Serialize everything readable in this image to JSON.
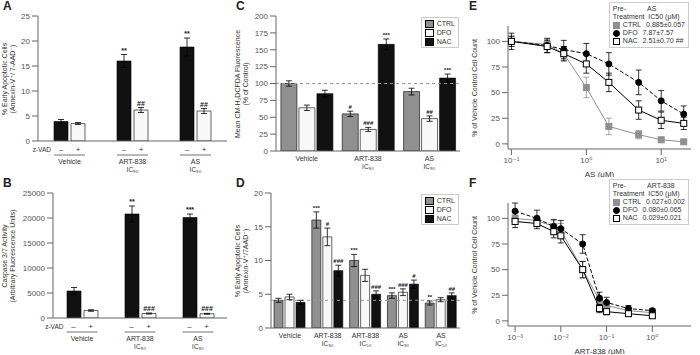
{
  "chart_data": [
    {
      "type": "bar",
      "title": "A",
      "ylabel": "% Early Apoptotic Cells\n(Annexin-V⁺/ 7-AAD⁻)",
      "xlabel": "z-VAD",
      "categories": [
        "Vehicle",
        "ART-838\nIC₉₀",
        "AS\nIC₉₀"
      ],
      "series": [
        {
          "name": "–",
          "color": "#111111",
          "values": [
            3.9,
            16.0,
            18.8
          ],
          "errors": [
            0.4,
            1.3,
            1.8
          ],
          "annotations": [
            null,
            "**",
            "**"
          ]
        },
        {
          "name": "+",
          "color": "#f8f8f8",
          "values": [
            3.5,
            6.2,
            6.0
          ],
          "errors": [
            0.2,
            0.5,
            0.5
          ],
          "annotations": [
            null,
            "##",
            "##"
          ]
        }
      ],
      "ylim": [
        0,
        25
      ],
      "yticks": [
        0,
        5,
        10,
        15,
        20,
        25
      ]
    },
    {
      "type": "bar",
      "title": "B",
      "ylabel": "Caspase 3/7 Activity\n(Arbitrary Fluorescence Units)",
      "xlabel": "z-VAD",
      "categories": [
        "Vehicle",
        "ART-838\nIC₉₀",
        "AS\nIC₉₀"
      ],
      "series": [
        {
          "name": "–",
          "color": "#111111",
          "values": [
            5400,
            20800,
            20100
          ],
          "errors": [
            700,
            1600,
            700
          ],
          "annotations": [
            null,
            "**",
            "***"
          ]
        },
        {
          "name": "+",
          "color": "#f8f8f8",
          "values": [
            1500,
            900,
            850
          ],
          "errors": [
            150,
            100,
            80
          ],
          "annotations": [
            null,
            "###",
            "###"
          ]
        }
      ],
      "ylim": [
        0,
        25000
      ],
      "yticks": [
        0,
        5000,
        10000,
        15000,
        20000,
        25000
      ]
    },
    {
      "type": "bar",
      "title": "C",
      "ylabel": "Mean CM-H₂DCFDA Fluorescence\n(% of Control)",
      "categories": [
        "Vehicle",
        "ART-838\nIC₉₀",
        "AS\nIC₉₀"
      ],
      "series": [
        {
          "name": "CTRL",
          "color": "#909090",
          "values": [
            100.0,
            55.0,
            88.0
          ],
          "errors": [
            4.0,
            4.0,
            5.0
          ],
          "annotations": [
            null,
            "#",
            null
          ]
        },
        {
          "name": "DFO",
          "color": "#f8f8f8",
          "values": [
            64.0,
            32.0,
            48.0
          ],
          "errors": [
            4.0,
            3.0,
            4.0
          ],
          "annotations": [
            null,
            "###",
            "##"
          ]
        },
        {
          "name": "NAC",
          "color": "#111111",
          "values": [
            85.0,
            158.0,
            108.0
          ],
          "errors": [
            5.0,
            8.0,
            6.0
          ],
          "annotations": [
            null,
            "***",
            "***"
          ]
        }
      ],
      "reference_line": 100,
      "legend": "upper right",
      "ylim": [
        0,
        200
      ],
      "yticks": [
        0,
        25,
        50,
        75,
        100,
        125,
        150,
        175,
        200
      ]
    },
    {
      "type": "bar",
      "title": "D",
      "ylabel": "% Early Apoptotic Cells\n(Annexin-V⁺/7AAD⁻)",
      "categories": [
        "Vehicle",
        "ART-838\nIC₉₀",
        "ART-838\nIC₅₀",
        "AS\nIC₉₀",
        "AS\nIC₅₀"
      ],
      "series": [
        {
          "name": "CTRL",
          "color": "#909090",
          "values": [
            4.1,
            16.0,
            10.0,
            4.8,
            3.7
          ],
          "errors": [
            0.3,
            1.2,
            0.9,
            0.4,
            0.3
          ],
          "annotations": [
            null,
            "***",
            "***",
            "***",
            "**"
          ]
        },
        {
          "name": "DFO",
          "color": "#f8f8f8",
          "values": [
            4.6,
            13.5,
            7.8,
            5.3,
            4.2
          ],
          "errors": [
            0.4,
            1.3,
            0.9,
            0.5,
            0.3
          ],
          "annotations": [
            null,
            "#",
            null,
            "###",
            null
          ]
        },
        {
          "name": "NAC",
          "color": "#111111",
          "values": [
            3.8,
            8.5,
            5.0,
            6.5,
            4.8
          ],
          "errors": [
            0.3,
            0.8,
            0.5,
            0.6,
            0.4
          ],
          "annotations": [
            null,
            "###",
            "###",
            "#",
            "##"
          ]
        }
      ],
      "reference_line": 4.1,
      "legend": "upper right",
      "ylim": [
        0,
        20
      ],
      "yticks": [
        0,
        5,
        10,
        15,
        20
      ]
    },
    {
      "type": "line",
      "title": "E",
      "xlabel": "AS (μM)",
      "ylabel": "% of Vehicle Control Cell Count",
      "legend": "upper right",
      "legend_title": "Pre-           AS\nTreatment  IC50 (μM)",
      "log": "x",
      "xlim": [
        0.09,
        25
      ],
      "xticks": [
        {
          "value": 0.1,
          "label": "10⁻¹"
        },
        {
          "value": 1,
          "label": "10⁰"
        },
        {
          "value": 10,
          "label": "10¹"
        }
      ],
      "ylim": [
        -5,
        115
      ],
      "yticks": [
        0,
        25,
        50,
        75,
        100
      ],
      "series": [
        {
          "name": "CTRL",
          "ic50": "0.885±0.057",
          "color": "#909090",
          "marker": "square",
          "line_style": "solid",
          "x": [
            0.1,
            0.3,
            0.5,
            1.0,
            2.0,
            5.0,
            10.0,
            20.0
          ],
          "values": [
            100,
            97,
            88,
            55,
            17,
            9,
            4,
            2
          ],
          "errors": [
            5,
            5,
            7,
            10,
            8,
            4,
            2,
            1
          ]
        },
        {
          "name": "DFO",
          "ic50": "7.87±7.57",
          "color": "#000000",
          "marker": "circle",
          "line_style": "dashed",
          "x": [
            0.1,
            0.3,
            0.5,
            1.0,
            2.0,
            5.0,
            10.0,
            20.0
          ],
          "values": [
            100,
            96,
            92,
            88,
            78,
            60,
            42,
            29
          ],
          "errors": [
            8,
            7,
            9,
            10,
            11,
            12,
            10,
            8
          ]
        },
        {
          "name": "NAC",
          "ic50": "2.51±0.70 ##",
          "color": "#000000",
          "marker": "open-square",
          "line_style": "solid",
          "x": [
            0.1,
            0.3,
            0.5,
            1.0,
            2.0,
            5.0,
            10.0,
            20.0
          ],
          "values": [
            100,
            95,
            88,
            78,
            60,
            33,
            23,
            20
          ],
          "errors": [
            5,
            6,
            7,
            9,
            9,
            9,
            8,
            6
          ]
        }
      ]
    },
    {
      "type": "line",
      "title": "F",
      "xlabel": "ART-838 (μM)",
      "ylabel": "% of Vehicle Control Cell Count",
      "legend": "upper right",
      "legend_title": "Pre-           ART-838\nTreatment  IC50 (μM)",
      "log": "x",
      "xlim": [
        0.0007,
        7
      ],
      "xticks": [
        {
          "value": 0.001,
          "label": "10⁻³"
        },
        {
          "value": 0.01,
          "label": "10⁻²"
        },
        {
          "value": 0.1,
          "label": "10⁻¹"
        },
        {
          "value": 1,
          "label": "10⁰"
        }
      ],
      "ylim": [
        -5,
        115
      ],
      "yticks": [
        0,
        25,
        50,
        75,
        100
      ],
      "series": [
        {
          "name": "CTRL",
          "ic50": "0.027±0.002",
          "color": "#909090",
          "marker": "square",
          "line_style": "solid",
          "x": [
            0.001,
            0.003,
            0.007,
            0.01,
            0.03,
            0.07,
            0.1,
            0.3,
            1.0
          ],
          "values": [
            100,
            98,
            92,
            88,
            50,
            20,
            15,
            10,
            8
          ],
          "errors": [
            6,
            5,
            6,
            7,
            8,
            5,
            4,
            3,
            2
          ]
        },
        {
          "name": "DFO",
          "ic50": "0.080±0.065",
          "color": "#000000",
          "marker": "circle",
          "line_style": "dashed",
          "x": [
            0.001,
            0.003,
            0.007,
            0.01,
            0.03,
            0.07,
            0.1,
            0.3,
            1.0
          ],
          "values": [
            107,
            100,
            92,
            90,
            75,
            22,
            18,
            12,
            10
          ],
          "errors": [
            8,
            8,
            7,
            8,
            9,
            6,
            5,
            3,
            2
          ]
        },
        {
          "name": "NAC",
          "ic50": "0.029±0.021",
          "color": "#000000",
          "marker": "open-square",
          "line_style": "solid",
          "x": [
            0.001,
            0.003,
            0.007,
            0.01,
            0.03,
            0.07,
            0.1,
            0.3,
            1.0
          ],
          "values": [
            97,
            95,
            87,
            83,
            50,
            12,
            9,
            7,
            5
          ],
          "errors": [
            6,
            5,
            6,
            7,
            8,
            4,
            3,
            2,
            2
          ]
        }
      ]
    }
  ]
}
